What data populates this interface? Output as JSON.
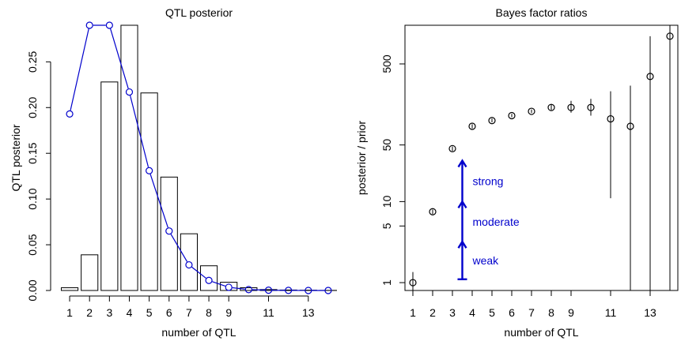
{
  "chart_data": [
    {
      "type": "bar",
      "title": "QTL posterior",
      "xlabel": "number of QTL",
      "ylabel": "QTL posterior",
      "x": [
        1,
        2,
        3,
        4,
        5,
        6,
        7,
        8,
        9,
        10,
        11,
        12,
        13,
        14
      ],
      "x_tick_labels": [
        "1",
        "2",
        "3",
        "4",
        "5",
        "6",
        "7",
        "8",
        "9",
        "11",
        "13"
      ],
      "x_tick_values": [
        1,
        2,
        3,
        4,
        5,
        6,
        7,
        8,
        9,
        11,
        13
      ],
      "y_tick_labels": [
        "0.00",
        "0.05",
        "0.10",
        "0.15",
        "0.20",
        "0.25"
      ],
      "y_tick_values": [
        0,
        0.05,
        0.1,
        0.15,
        0.2,
        0.25
      ],
      "ylim": [
        0,
        0.29
      ],
      "series": [
        {
          "kind": "bar",
          "values": [
            0.003,
            0.039,
            0.228,
            0.29,
            0.216,
            0.124,
            0.062,
            0.027,
            0.009,
            0.003,
            0.001,
            0.0005,
            0.0003,
            0.0001
          ],
          "color": "#000000"
        },
        {
          "kind": "line-points",
          "values": [
            0.193,
            0.29,
            0.29,
            0.217,
            0.131,
            0.065,
            0.028,
            0.011,
            0.0035,
            0.001,
            0.0003,
            0.0001,
            3e-05,
            1e-05
          ],
          "color": "#0000cc"
        }
      ]
    },
    {
      "type": "scatter",
      "title": "Bayes factor ratios",
      "xlabel": "number of QTL",
      "ylabel": "posterior / prior",
      "yscale": "log",
      "x": [
        1,
        2,
        3,
        4,
        5,
        6,
        7,
        8,
        9,
        10,
        11,
        12,
        13,
        14
      ],
      "x_tick_labels": [
        "1",
        "2",
        "3",
        "4",
        "5",
        "6",
        "7",
        "8",
        "9",
        "11",
        "13"
      ],
      "x_tick_values": [
        1,
        2,
        3,
        4,
        5,
        6,
        7,
        8,
        9,
        11,
        13
      ],
      "y_tick_labels": [
        "1",
        "5",
        "10",
        "50",
        "500"
      ],
      "y_tick_values": [
        1,
        5,
        10,
        50,
        500
      ],
      "ylim": [
        0.8,
        1500
      ],
      "points": [
        1,
        7.5,
        45,
        85,
        100,
        115,
        130,
        145,
        145,
        145,
        105,
        85,
        350,
        1100
      ],
      "intervals": [
        [
          0.8,
          1.35
        ],
        [
          7.0,
          8.0
        ],
        [
          42,
          48
        ],
        [
          80,
          90
        ],
        [
          95,
          106
        ],
        [
          110,
          121
        ],
        [
          124,
          137
        ],
        [
          135,
          160
        ],
        [
          125,
          175
        ],
        [
          115,
          185
        ],
        [
          11,
          230
        ],
        [
          0.8,
          270
        ],
        [
          0.8,
          1100
        ],
        [
          0.8,
          1500
        ]
      ],
      "point_color": "#000000",
      "annotation": {
        "x": 3.5,
        "color": "#0000cc",
        "levels": [
          {
            "label": "weak",
            "from": 1.1,
            "to": 3.2
          },
          {
            "label": "moderate",
            "from": 3.2,
            "to": 10
          },
          {
            "label": "strong",
            "from": 10,
            "to": 32
          }
        ]
      }
    }
  ]
}
